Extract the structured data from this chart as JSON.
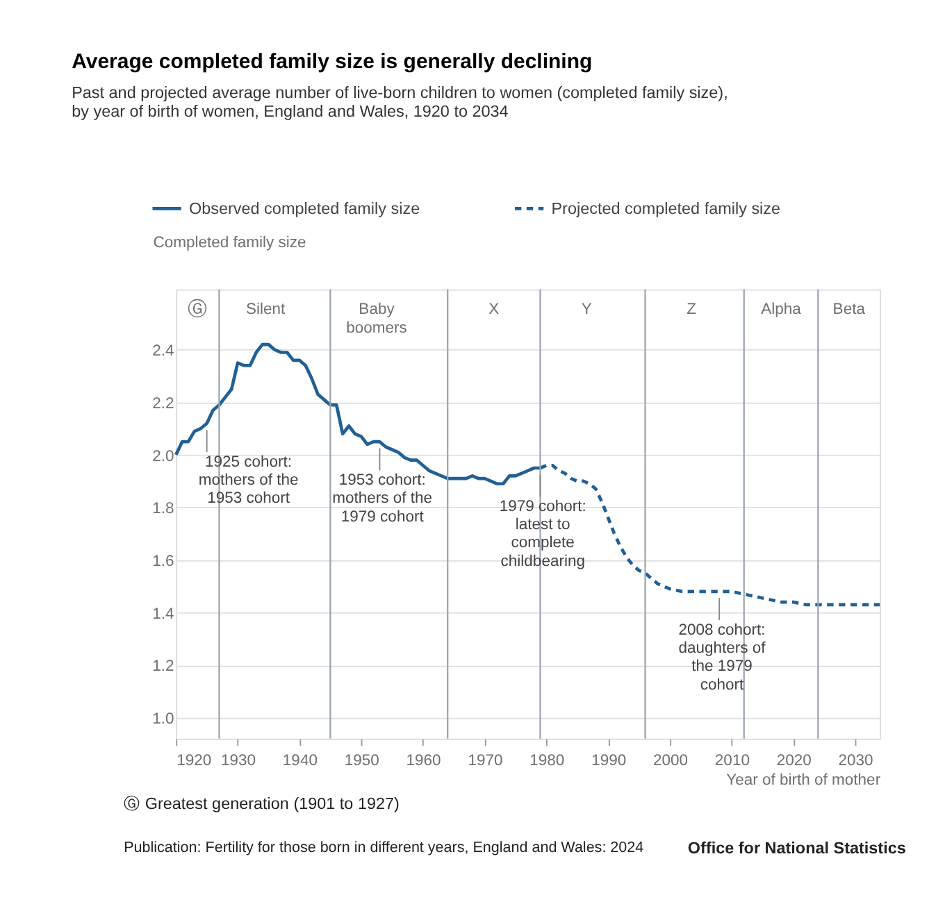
{
  "chart_data": {
    "type": "line",
    "title": "Average completed family size is generally declining",
    "subtitle": "Past and projected average number of live-born children to women (completed family size), by year of birth of women, England and Wales, 1920 to 2034",
    "xlabel": "Year of birth of mother",
    "ylabel": "Completed family size",
    "xlim": [
      1920,
      2034
    ],
    "xticks": [
      1920,
      1930,
      1940,
      1950,
      1960,
      1970,
      1980,
      1990,
      2000,
      2010,
      2020,
      2030
    ],
    "ylim": [
      0.92,
      2.63
    ],
    "yticks": [
      {
        "value": 1,
        "label": "1.0"
      },
      1.2,
      1.4,
      1.6,
      1.8,
      {
        "value": 2,
        "label": "2.0"
      },
      2.2,
      2.4
    ],
    "grid": "y",
    "legend": "top left",
    "series": [
      {
        "name": "Observed completed family size",
        "color": "#206095",
        "line_style": "solid",
        "x": [
          1920,
          1921,
          1922,
          1923,
          1924,
          1925,
          1926,
          1927,
          1928,
          1929,
          1930,
          1931,
          1932,
          1933,
          1934,
          1935,
          1936,
          1937,
          1938,
          1939,
          1940,
          1941,
          1942,
          1943,
          1944,
          1945,
          1946,
          1947,
          1948,
          1949,
          1950,
          1951,
          1952,
          1953,
          1954,
          1955,
          1956,
          1957,
          1958,
          1959,
          1960,
          1961,
          1962,
          1963,
          1964,
          1965,
          1966,
          1967,
          1968,
          1969,
          1970,
          1971,
          1972,
          1973,
          1974,
          1975,
          1976,
          1977,
          1978,
          1979
        ],
        "values": [
          2.0,
          2.05,
          2.05,
          2.09,
          2.1,
          2.12,
          2.17,
          2.19,
          2.22,
          2.25,
          2.35,
          2.34,
          2.34,
          2.39,
          2.42,
          2.42,
          2.4,
          2.39,
          2.39,
          2.36,
          2.36,
          2.34,
          2.29,
          2.23,
          2.21,
          2.19,
          2.19,
          2.08,
          2.11,
          2.08,
          2.07,
          2.04,
          2.05,
          2.05,
          2.03,
          2.02,
          2.01,
          1.99,
          1.98,
          1.98,
          1.96,
          1.94,
          1.93,
          1.92,
          1.91,
          1.91,
          1.91,
          1.91,
          1.92,
          1.91,
          1.91,
          1.9,
          1.89,
          1.89,
          1.92,
          1.92,
          1.93,
          1.94,
          1.95,
          1.95
        ]
      },
      {
        "name": "Projected completed family size",
        "color": "#206095",
        "line_style": "dashed",
        "x": [
          1979,
          1980,
          1981,
          1982,
          1983,
          1984,
          1985,
          1986,
          1987,
          1988,
          1989,
          1990,
          1991,
          1992,
          1993,
          1994,
          1995,
          1996,
          1997,
          1998,
          1999,
          2000,
          2002,
          2004,
          2006,
          2008,
          2010,
          2012,
          2014,
          2016,
          2018,
          2020,
          2022,
          2024,
          2026,
          2028,
          2030,
          2032,
          2034
        ],
        "values": [
          1.95,
          1.96,
          1.96,
          1.94,
          1.93,
          1.91,
          1.9,
          1.9,
          1.89,
          1.87,
          1.82,
          1.76,
          1.7,
          1.65,
          1.61,
          1.58,
          1.56,
          1.55,
          1.53,
          1.51,
          1.5,
          1.49,
          1.48,
          1.48,
          1.48,
          1.48,
          1.48,
          1.47,
          1.46,
          1.45,
          1.44,
          1.44,
          1.43,
          1.43,
          1.43,
          1.43,
          1.43,
          1.43,
          1.43
        ]
      }
    ],
    "ref_lines": [
      {
        "axis": "x",
        "value": 1927,
        "label": "Silent",
        "color": "#9aa5b1"
      },
      {
        "axis": "x",
        "value": 1945,
        "label": "Baby boomers",
        "color": "#9aa5b1"
      },
      {
        "axis": "x",
        "value": 1964,
        "label": "X",
        "color": "#9aa5b1"
      },
      {
        "axis": "x",
        "value": 1979,
        "label": "Y",
        "color": "#9aa5b1"
      },
      {
        "axis": "x",
        "value": 1996,
        "label": "Z",
        "color": "#9aa5b1"
      },
      {
        "axis": "x",
        "value": 2012,
        "label": "Alpha",
        "color": "#9aa5b1"
      },
      {
        "axis": "x",
        "value": 2024,
        "label": "Beta",
        "color": "#9aa5b1"
      }
    ],
    "annotations": [
      "Ⓖ",
      {
        "text": "1925 cohort: mothers of the 1953 cohort",
        "x": 1925,
        "y": 2.12
      },
      {
        "text": "1953 cohort: mothers of the 1979 cohort",
        "x": 1953,
        "y": 2.05
      },
      {
        "text": "1979 cohort: latest to complete childbearing",
        "x": 1979,
        "y": 1.95
      },
      {
        "text": "2008 cohort: daughters of the 1979 cohort",
        "x": 2008,
        "y": 1.48
      },
      "Ⓖ Greatest generation (1901 to 1927)",
      "Publication: Fertility for those born in different years, England and Wales: 2024",
      "Office for National Statistics"
    ]
  }
}
